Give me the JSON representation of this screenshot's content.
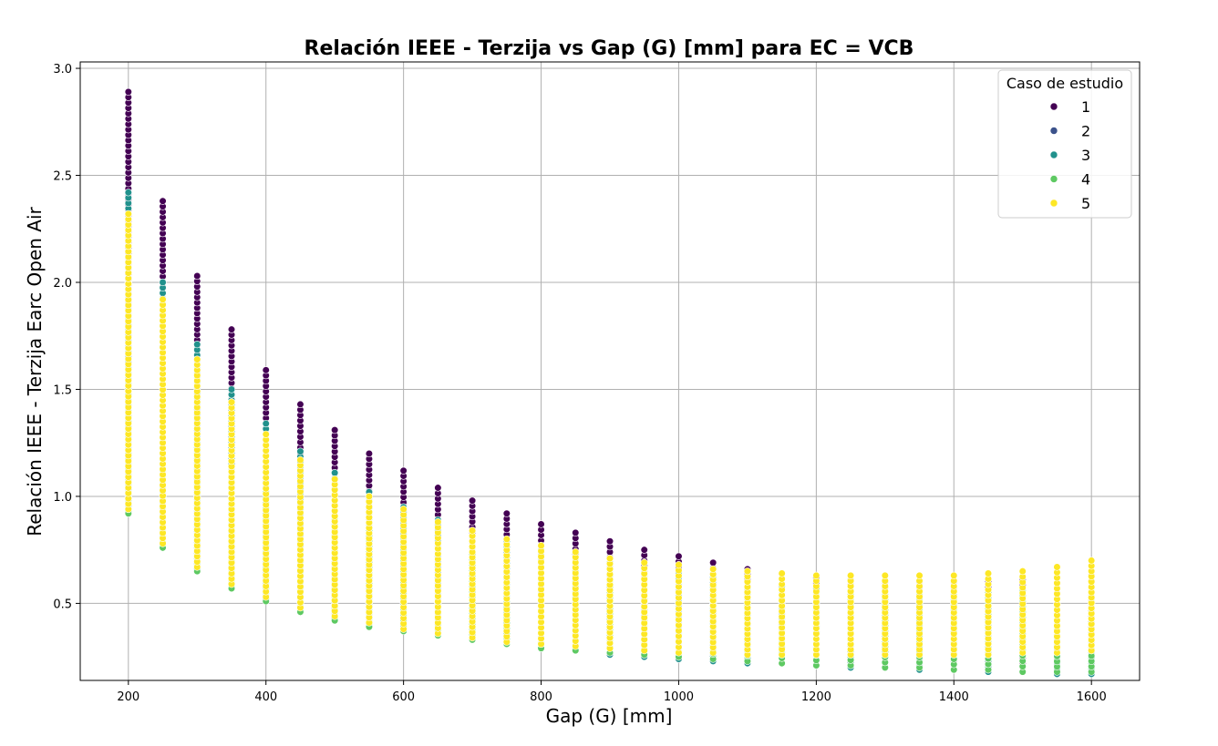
{
  "chart_data": {
    "type": "scatter",
    "title": "Relación IEEE - Terzija vs Gap (G) [mm] para EC = VCB",
    "xlabel": "Gap (G) [mm]",
    "ylabel": "Relación IEEE - Terzija Earc Open Air",
    "xlim": [
      130,
      1670
    ],
    "ylim": [
      0.14,
      3.03
    ],
    "x_ticks": [
      200,
      400,
      600,
      800,
      1000,
      1200,
      1400,
      1600
    ],
    "x_tick_labels": [
      "200",
      "400",
      "600",
      "800",
      "1000",
      "1200",
      "1400",
      "1600"
    ],
    "y_ticks": [
      0.5,
      1.0,
      1.5,
      2.0,
      2.5,
      3.0
    ],
    "y_tick_labels": [
      "0.5",
      "1.0",
      "1.5",
      "2.0",
      "2.5",
      "3.0"
    ],
    "grid": true,
    "legend": {
      "title": "Caso de estudio",
      "placement": "top-right",
      "entries": [
        "1",
        "2",
        "3",
        "4",
        "5"
      ]
    },
    "colors": {
      "1": "#440154",
      "2": "#3b528b",
      "3": "#21918c",
      "4": "#5ec962",
      "5": "#fde725"
    },
    "gaps": [
      200,
      250,
      300,
      350,
      400,
      450,
      500,
      550,
      600,
      650,
      700,
      750,
      800,
      850,
      900,
      950,
      1000,
      1050,
      1100,
      1150,
      1200,
      1250,
      1300,
      1350,
      1400,
      1450,
      1500,
      1550,
      1600
    ],
    "series": [
      {
        "name": "1",
        "y_min": [
          0.93,
          0.77,
          0.66,
          0.58,
          0.52,
          0.47,
          0.43,
          0.4,
          0.38,
          0.36,
          0.34,
          0.33,
          0.31,
          0.3,
          0.29,
          0.28,
          0.27,
          0.26,
          0.25,
          0.25,
          0.24,
          0.24,
          0.23,
          0.23,
          0.23,
          0.22,
          0.22,
          0.22,
          0.22
        ],
        "y_max": [
          2.89,
          2.38,
          2.03,
          1.78,
          1.59,
          1.43,
          1.31,
          1.2,
          1.12,
          1.04,
          0.98,
          0.92,
          0.87,
          0.83,
          0.79,
          0.75,
          0.72,
          0.69,
          0.66,
          0.64,
          0.62,
          0.61,
          0.6,
          0.6,
          0.6,
          0.6,
          0.61,
          0.62,
          0.63
        ]
      },
      {
        "name": "2",
        "y_min": [
          0.93,
          0.77,
          0.66,
          0.58,
          0.52,
          0.47,
          0.43,
          0.4,
          0.37,
          0.35,
          0.33,
          0.31,
          0.29,
          0.28,
          0.26,
          0.25,
          0.24,
          0.23,
          0.22,
          0.22,
          0.21,
          0.2,
          0.2,
          0.19,
          0.19,
          0.18,
          0.18,
          0.17,
          0.17
        ],
        "y_max": [
          2.1,
          1.8,
          1.58,
          1.4,
          1.26,
          1.15,
          1.06,
          0.98,
          0.92,
          0.86,
          0.81,
          0.77,
          0.73,
          0.7,
          0.67,
          0.64,
          0.62,
          0.6,
          0.58,
          0.56,
          0.55,
          0.54,
          0.53,
          0.53,
          0.53,
          0.53,
          0.54,
          0.55,
          0.56
        ]
      },
      {
        "name": "3",
        "y_min": [
          0.93,
          0.77,
          0.66,
          0.58,
          0.52,
          0.47,
          0.43,
          0.4,
          0.37,
          0.35,
          0.33,
          0.31,
          0.29,
          0.28,
          0.26,
          0.25,
          0.24,
          0.23,
          0.22,
          0.22,
          0.21,
          0.2,
          0.2,
          0.19,
          0.19,
          0.18,
          0.18,
          0.17,
          0.17
        ],
        "y_max": [
          2.42,
          2.0,
          1.71,
          1.5,
          1.34,
          1.21,
          1.11,
          1.02,
          0.95,
          0.89,
          0.84,
          0.79,
          0.75,
          0.72,
          0.69,
          0.66,
          0.64,
          0.62,
          0.6,
          0.58,
          0.57,
          0.56,
          0.55,
          0.55,
          0.55,
          0.55,
          0.56,
          0.57,
          0.58
        ]
      },
      {
        "name": "4",
        "y_min": [
          0.92,
          0.76,
          0.65,
          0.57,
          0.51,
          0.46,
          0.42,
          0.39,
          0.37,
          0.35,
          0.33,
          0.31,
          0.29,
          0.28,
          0.27,
          0.26,
          0.25,
          0.24,
          0.23,
          0.22,
          0.21,
          0.21,
          0.2,
          0.2,
          0.19,
          0.19,
          0.18,
          0.18,
          0.18
        ],
        "y_max": [
          1.6,
          1.4,
          1.25,
          1.12,
          1.02,
          0.95,
          0.89,
          0.84,
          0.8,
          0.76,
          0.73,
          0.7,
          0.67,
          0.65,
          0.63,
          0.61,
          0.6,
          0.58,
          0.57,
          0.56,
          0.55,
          0.54,
          0.54,
          0.54,
          0.54,
          0.55,
          0.56,
          0.57,
          0.58
        ]
      },
      {
        "name": "5",
        "y_min": [
          0.94,
          0.78,
          0.67,
          0.59,
          0.53,
          0.48,
          0.44,
          0.41,
          0.38,
          0.36,
          0.34,
          0.32,
          0.31,
          0.3,
          0.29,
          0.28,
          0.27,
          0.27,
          0.26,
          0.26,
          0.26,
          0.26,
          0.26,
          0.26,
          0.26,
          0.26,
          0.27,
          0.27,
          0.28
        ],
        "y_max": [
          2.32,
          1.92,
          1.64,
          1.44,
          1.29,
          1.17,
          1.08,
          1.0,
          0.94,
          0.88,
          0.84,
          0.8,
          0.77,
          0.74,
          0.71,
          0.69,
          0.68,
          0.66,
          0.65,
          0.64,
          0.63,
          0.63,
          0.63,
          0.63,
          0.63,
          0.64,
          0.65,
          0.67,
          0.7
        ]
      }
    ]
  }
}
